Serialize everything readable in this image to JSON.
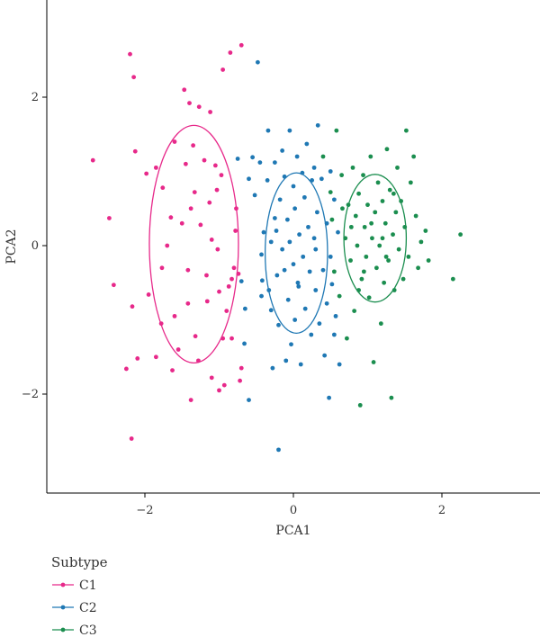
{
  "chart_data": {
    "type": "scatter",
    "xlabel": "PCA1",
    "ylabel": "PCA2",
    "xlim": [
      -3.3,
      3.3
    ],
    "ylim": [
      -3.3,
      3.2
    ],
    "xticks": [
      -2,
      0,
      2
    ],
    "yticks": [
      -2,
      0,
      2
    ],
    "xtick_labels": [
      "−2",
      "0",
      "2"
    ],
    "ytick_labels": [
      "−2",
      "0",
      "2"
    ],
    "grid": false,
    "legend": {
      "title": "Subtype",
      "position": "bottom-left"
    },
    "series": [
      {
        "name": "C1",
        "color": "#e7298a",
        "ellipse": {
          "cx": -1.34,
          "cy": 0.02,
          "rx": 0.6,
          "ry": 1.6
        },
        "points": [
          [
            -2.7,
            1.15
          ],
          [
            -2.48,
            0.37
          ],
          [
            -2.42,
            -0.53
          ],
          [
            -2.2,
            2.58
          ],
          [
            -2.15,
            2.27
          ],
          [
            -2.13,
            1.27
          ],
          [
            -2.17,
            -0.82
          ],
          [
            -2.1,
            -1.52
          ],
          [
            -2.25,
            -1.66
          ],
          [
            -2.18,
            -2.6
          ],
          [
            -1.98,
            0.97
          ],
          [
            -1.95,
            -0.66
          ],
          [
            -1.85,
            1.05
          ],
          [
            -1.76,
            0.78
          ],
          [
            -1.7,
            0.0
          ],
          [
            -1.77,
            -0.3
          ],
          [
            -1.85,
            -1.5
          ],
          [
            -1.78,
            -1.05
          ],
          [
            -1.6,
            1.4
          ],
          [
            -1.65,
            0.38
          ],
          [
            -1.6,
            -0.95
          ],
          [
            -1.55,
            -1.4
          ],
          [
            -1.63,
            -1.68
          ],
          [
            -1.5,
            0.3
          ],
          [
            -1.45,
            1.1
          ],
          [
            -1.42,
            -0.33
          ],
          [
            -1.42,
            -0.78
          ],
          [
            -1.4,
            1.92
          ],
          [
            -1.35,
            1.35
          ],
          [
            -1.33,
            0.72
          ],
          [
            -1.38,
            0.5
          ],
          [
            -1.32,
            -1.22
          ],
          [
            -1.38,
            -2.08
          ],
          [
            -1.27,
            1.87
          ],
          [
            -1.28,
            -1.55
          ],
          [
            -1.25,
            0.28
          ],
          [
            -1.2,
            1.15
          ],
          [
            -1.17,
            -0.4
          ],
          [
            -1.16,
            -0.75
          ],
          [
            -1.12,
            1.8
          ],
          [
            -1.13,
            0.58
          ],
          [
            -1.1,
            0.08
          ],
          [
            -1.1,
            -1.78
          ],
          [
            -1.05,
            1.08
          ],
          [
            -1.03,
            0.75
          ],
          [
            -1.02,
            -0.05
          ],
          [
            -1.0,
            -0.62
          ],
          [
            -1.0,
            -1.95
          ],
          [
            -0.97,
            0.95
          ],
          [
            -0.95,
            -1.25
          ],
          [
            -0.95,
            2.37
          ],
          [
            -0.93,
            -1.88
          ],
          [
            -0.9,
            -0.88
          ],
          [
            -0.87,
            -0.55
          ],
          [
            -0.85,
            2.6
          ],
          [
            -0.83,
            -0.45
          ],
          [
            -0.8,
            -0.3
          ],
          [
            -0.78,
            0.2
          ],
          [
            -0.77,
            0.5
          ],
          [
            -0.74,
            -0.38
          ],
          [
            -0.72,
            -1.82
          ],
          [
            -0.7,
            2.7
          ],
          [
            -0.7,
            -1.65
          ],
          [
            -0.83,
            -1.25
          ],
          [
            -1.47,
            2.1
          ]
        ]
      },
      {
        "name": "C2",
        "color": "#1f78b4",
        "ellipse": {
          "cx": 0.04,
          "cy": -0.1,
          "rx": 0.42,
          "ry": 1.08
        },
        "points": [
          [
            -0.75,
            1.17
          ],
          [
            -0.7,
            -0.48
          ],
          [
            -0.66,
            -1.32
          ],
          [
            -0.65,
            -0.85
          ],
          [
            -0.6,
            0.9
          ],
          [
            -0.6,
            -2.08
          ],
          [
            -0.55,
            1.19
          ],
          [
            -0.52,
            0.68
          ],
          [
            -0.48,
            2.47
          ],
          [
            -0.45,
            1.12
          ],
          [
            -0.43,
            -0.12
          ],
          [
            -0.42,
            -0.47
          ],
          [
            -0.4,
            0.18
          ],
          [
            -0.35,
            0.88
          ],
          [
            -0.34,
            1.55
          ],
          [
            -0.33,
            -0.6
          ],
          [
            -0.3,
            0.05
          ],
          [
            -0.3,
            -0.87
          ],
          [
            -0.28,
            -1.65
          ],
          [
            -0.25,
            1.12
          ],
          [
            -0.25,
            0.37
          ],
          [
            -0.22,
            -0.4
          ],
          [
            -0.2,
            -1.07
          ],
          [
            -0.2,
            -2.75
          ],
          [
            -0.18,
            0.62
          ],
          [
            -0.15,
            1.28
          ],
          [
            -0.15,
            -0.05
          ],
          [
            -0.12,
            0.93
          ],
          [
            -0.12,
            -0.33
          ],
          [
            -0.1,
            -1.55
          ],
          [
            -0.08,
            0.35
          ],
          [
            -0.07,
            -0.73
          ],
          [
            -0.05,
            1.55
          ],
          [
            -0.05,
            0.05
          ],
          [
            -0.03,
            -1.33
          ],
          [
            0.0,
            0.8
          ],
          [
            0.0,
            -0.25
          ],
          [
            0.02,
            0.5
          ],
          [
            0.02,
            -1.0
          ],
          [
            0.05,
            1.2
          ],
          [
            0.06,
            -0.5
          ],
          [
            0.08,
            0.15
          ],
          [
            0.1,
            -1.6
          ],
          [
            0.12,
            0.98
          ],
          [
            0.13,
            -0.15
          ],
          [
            0.15,
            0.65
          ],
          [
            0.16,
            -0.85
          ],
          [
            0.18,
            1.37
          ],
          [
            0.2,
            0.25
          ],
          [
            0.22,
            -0.35
          ],
          [
            0.24,
            -1.2
          ],
          [
            0.25,
            0.88
          ],
          [
            0.28,
            1.05
          ],
          [
            0.3,
            -0.05
          ],
          [
            0.3,
            -0.6
          ],
          [
            0.32,
            0.45
          ],
          [
            0.33,
            1.62
          ],
          [
            0.35,
            -1.05
          ],
          [
            0.38,
            0.9
          ],
          [
            0.4,
            -0.33
          ],
          [
            0.42,
            -1.48
          ],
          [
            0.45,
            0.3
          ],
          [
            0.45,
            -0.78
          ],
          [
            0.48,
            -2.05
          ],
          [
            0.5,
            1.0
          ],
          [
            0.5,
            -0.15
          ],
          [
            0.52,
            -0.52
          ],
          [
            0.55,
            0.62
          ],
          [
            0.55,
            -1.2
          ],
          [
            0.57,
            -0.95
          ],
          [
            0.6,
            0.18
          ],
          [
            0.62,
            -1.6
          ],
          [
            -0.43,
            -0.68
          ],
          [
            0.07,
            -0.55
          ],
          [
            -0.23,
            0.2
          ],
          [
            0.28,
            0.1
          ]
        ]
      },
      {
        "name": "C3",
        "color": "#1b8e4f",
        "ellipse": {
          "cx": 1.1,
          "cy": 0.1,
          "rx": 0.42,
          "ry": 0.86
        },
        "points": [
          [
            0.4,
            1.2
          ],
          [
            0.5,
            0.72
          ],
          [
            0.52,
            0.35
          ],
          [
            0.55,
            -0.35
          ],
          [
            0.58,
            1.55
          ],
          [
            0.62,
            -0.68
          ],
          [
            0.65,
            0.95
          ],
          [
            0.7,
            0.1
          ],
          [
            0.72,
            -1.25
          ],
          [
            0.74,
            0.55
          ],
          [
            0.77,
            -0.2
          ],
          [
            0.8,
            1.05
          ],
          [
            0.82,
            -0.88
          ],
          [
            0.84,
            0.4
          ],
          [
            0.86,
            0.0
          ],
          [
            0.88,
            0.7
          ],
          [
            0.9,
            -2.15
          ],
          [
            0.92,
            -0.45
          ],
          [
            0.94,
            0.95
          ],
          [
            0.96,
            0.25
          ],
          [
            0.98,
            -0.15
          ],
          [
            1.0,
            0.55
          ],
          [
            1.02,
            -0.7
          ],
          [
            1.04,
            1.2
          ],
          [
            1.06,
            0.1
          ],
          [
            1.08,
            -1.57
          ],
          [
            1.1,
            0.45
          ],
          [
            1.12,
            -0.3
          ],
          [
            1.14,
            0.85
          ],
          [
            1.16,
            0.0
          ],
          [
            1.18,
            -1.05
          ],
          [
            1.2,
            0.6
          ],
          [
            1.22,
            -0.5
          ],
          [
            1.24,
            0.3
          ],
          [
            1.26,
            1.3
          ],
          [
            1.28,
            -0.2
          ],
          [
            1.3,
            0.75
          ],
          [
            1.32,
            -2.05
          ],
          [
            1.34,
            0.15
          ],
          [
            1.36,
            -0.6
          ],
          [
            1.38,
            0.45
          ],
          [
            1.4,
            1.05
          ],
          [
            1.42,
            -0.05
          ],
          [
            1.45,
            0.6
          ],
          [
            1.48,
            -0.45
          ],
          [
            1.5,
            0.25
          ],
          [
            1.52,
            1.55
          ],
          [
            1.55,
            -0.15
          ],
          [
            1.58,
            0.85
          ],
          [
            1.62,
            1.2
          ],
          [
            1.65,
            0.4
          ],
          [
            1.68,
            -0.3
          ],
          [
            1.72,
            0.05
          ],
          [
            1.78,
            0.2
          ],
          [
            1.82,
            -0.2
          ],
          [
            2.15,
            -0.45
          ],
          [
            2.25,
            0.15
          ],
          [
            1.05,
            0.3
          ],
          [
            0.95,
            -0.35
          ],
          [
            1.2,
            0.1
          ],
          [
            0.78,
            0.25
          ],
          [
            1.25,
            -0.15
          ],
          [
            0.66,
            0.5
          ],
          [
            1.35,
            0.7
          ],
          [
            0.88,
            -0.6
          ]
        ]
      }
    ]
  }
}
